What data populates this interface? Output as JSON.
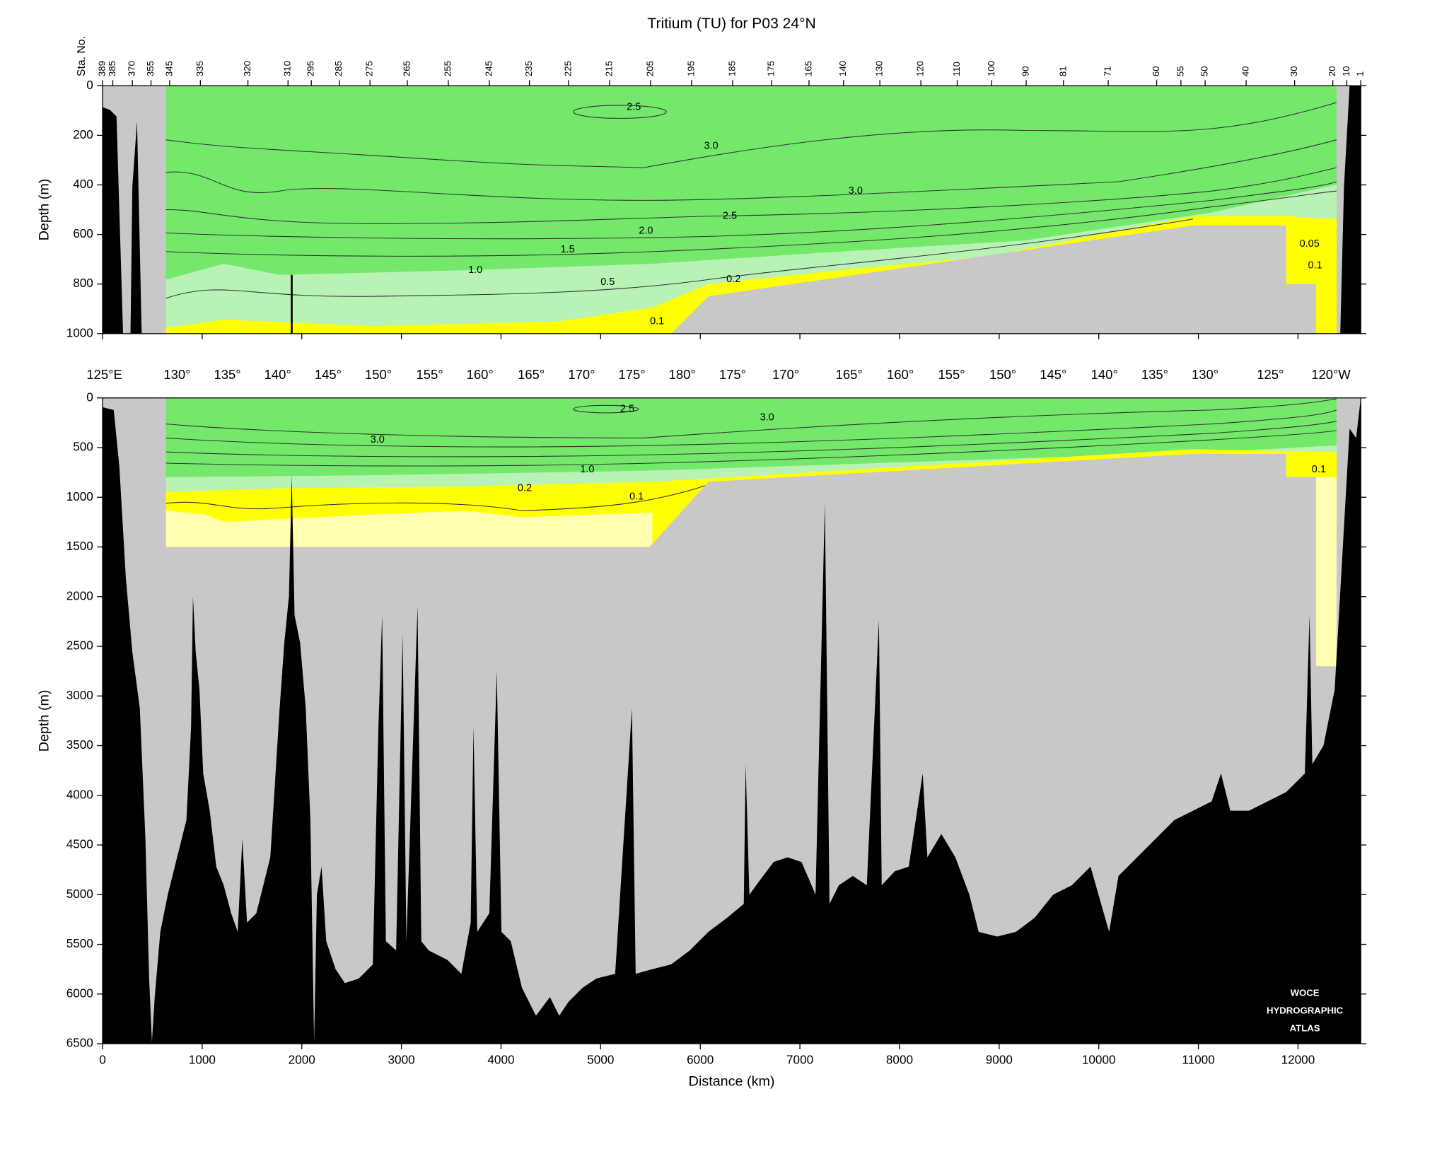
{
  "chart_data": [
    {
      "type": "section",
      "title": "Tritium (TU) for P03 24°N",
      "station_label": "Sta. No.",
      "stations": [
        389,
        385,
        370,
        355,
        345,
        335,
        320,
        310,
        295,
        285,
        275,
        265,
        255,
        245,
        235,
        225,
        215,
        205,
        195,
        185,
        175,
        165,
        140,
        130,
        120,
        110,
        100,
        90,
        81,
        71,
        60,
        55,
        50,
        40,
        30,
        20,
        10,
        1
      ],
      "ylabel": "Depth (m)",
      "ylim": [
        0,
        1000
      ],
      "yticks": [
        0,
        200,
        400,
        600,
        800,
        1000
      ],
      "contour_labels": [
        2.5,
        {
          "value": 3,
          "label": "3.0"
        },
        {
          "value": 3,
          "label": "3.0"
        },
        2.5,
        {
          "value": 2,
          "label": "2.0"
        },
        1.5,
        {
          "value": 1,
          "label": "1.0"
        },
        0.5,
        0.2,
        0.1,
        0.05,
        0.1
      ]
    },
    {
      "type": "section",
      "longitudes": [
        "125°E",
        "130°",
        "135°",
        "140°",
        "145°",
        "150°",
        "155°",
        "160°",
        "165°",
        "170°",
        "175°",
        "180°",
        "175°",
        "170°",
        "165°",
        "160°",
        "155°",
        "150°",
        "145°",
        "140°",
        "135°",
        "130°",
        "125°",
        "120°W"
      ],
      "xlabel": "Distance (km)",
      "ylabel": "Depth (m)",
      "xlim": [
        0,
        12630
      ],
      "xticks": [
        0,
        1000,
        2000,
        3000,
        4000,
        5000,
        6000,
        7000,
        8000,
        9000,
        10000,
        11000,
        12000
      ],
      "ylim": [
        0,
        6500
      ],
      "yticks": [
        0,
        500,
        1000,
        1500,
        2000,
        2500,
        3000,
        3500,
        4000,
        4500,
        5000,
        5500,
        6000,
        6500
      ],
      "contour_labels": [
        2.5,
        {
          "value": 3,
          "label": "3.0"
        },
        {
          "value": 3,
          "label": "3.0"
        },
        {
          "value": 1,
          "label": "1.0"
        },
        0.2,
        0.1,
        0.1
      ],
      "annotation": [
        "WOCE",
        "HYDROGRAPHIC",
        "ATLAS"
      ]
    }
  ]
}
